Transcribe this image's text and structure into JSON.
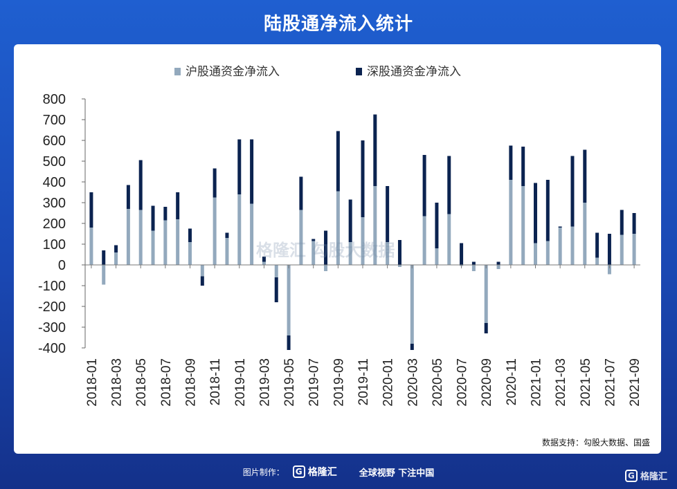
{
  "title": "陆股通净流入统计",
  "source": "数据支持：勾股大数据、国盛",
  "footer": {
    "made_by": "图片制作：",
    "logo_text": "格隆汇",
    "slogan": "全球视野 下注中国"
  },
  "watermark": "格隆汇 勾股大数据",
  "corner_logo": "格隆汇",
  "colors": {
    "sh": "#93a9bd",
    "sz": "#0b2350",
    "background": "#1a4fc2"
  },
  "chart_data": {
    "type": "bar",
    "stacked": true,
    "title": "",
    "legend_position": "top-center",
    "ylim": [
      -400,
      800
    ],
    "yticks": [
      800,
      700,
      600,
      500,
      400,
      300,
      200,
      100,
      0,
      -100,
      -200,
      -300,
      -400
    ],
    "categories": [
      "2018-01",
      "2018-02",
      "2018-03",
      "2018-04",
      "2018-05",
      "2018-06",
      "2018-07",
      "2018-08",
      "2018-09",
      "2018-10",
      "2018-11",
      "2018-12",
      "2019-01",
      "2019-02",
      "2019-03",
      "2019-04",
      "2019-05",
      "2019-06",
      "2019-07",
      "2019-08",
      "2019-09",
      "2019-10",
      "2019-11",
      "2019-12",
      "2020-01",
      "2020-02",
      "2020-03",
      "2020-04",
      "2020-05",
      "2020-06",
      "2020-07",
      "2020-08",
      "2020-09",
      "2020-10",
      "2020-11",
      "2020-12",
      "2021-01",
      "2021-02",
      "2021-03",
      "2021-04",
      "2021-05",
      "2021-06",
      "2021-07",
      "2021-08",
      "2021-09"
    ],
    "xtick_labels": [
      "2018-01",
      "2018-03",
      "2018-05",
      "2018-07",
      "2018-09",
      "2018-11",
      "2019-01",
      "2019-03",
      "2019-05",
      "2019-07",
      "2019-09",
      "2019-11",
      "2020-01",
      "2020-03",
      "2020-05",
      "2020-07",
      "2020-09",
      "2020-11",
      "2021-01",
      "2021-03",
      "2021-05",
      "2021-07",
      "2021-09"
    ],
    "series": [
      {
        "name": "沪股通资金净流入",
        "color": "#93a9bd",
        "values": [
          180,
          -95,
          60,
          270,
          265,
          165,
          215,
          220,
          110,
          -55,
          325,
          130,
          340,
          295,
          15,
          -60,
          -340,
          265,
          115,
          -30,
          355,
          110,
          230,
          380,
          110,
          -10,
          -380,
          235,
          80,
          245,
          -5,
          -30,
          -280,
          -20,
          410,
          380,
          105,
          115,
          180,
          185,
          300,
          35,
          -45,
          145,
          150
        ]
      },
      {
        "name": "深股通资金净流入",
        "color": "#0b2350",
        "values": [
          170,
          70,
          35,
          115,
          240,
          120,
          65,
          130,
          65,
          -45,
          140,
          25,
          265,
          310,
          25,
          -120,
          -70,
          160,
          10,
          165,
          290,
          205,
          370,
          345,
          270,
          120,
          -30,
          295,
          220,
          280,
          105,
          15,
          -50,
          15,
          165,
          190,
          290,
          295,
          5,
          340,
          255,
          120,
          150,
          120,
          100
        ]
      }
    ]
  }
}
